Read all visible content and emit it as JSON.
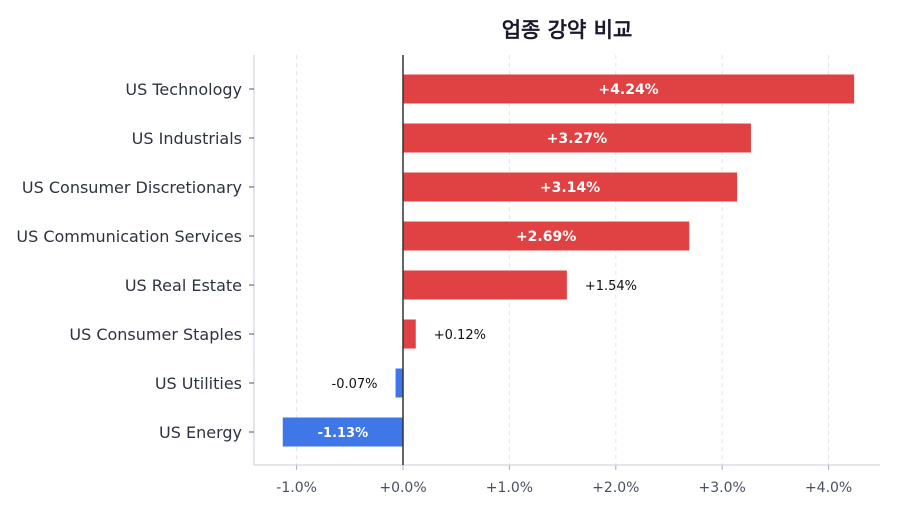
{
  "chart_data": {
    "type": "bar",
    "orientation": "horizontal",
    "title": "업종 강약 비교",
    "categories": [
      "US Technology",
      "US Industrials",
      "US Consumer Discretionary",
      "US Communication Services",
      "US Real Estate",
      "US Consumer Staples",
      "US Utilities",
      "US Energy"
    ],
    "values": [
      4.24,
      3.27,
      3.14,
      2.69,
      1.54,
      0.12,
      -0.07,
      -1.13
    ],
    "data_labels": [
      "+4.24%",
      "+3.27%",
      "+3.14%",
      "+2.69%",
      "+1.54%",
      "+0.12%",
      "-0.07%",
      "-1.13%"
    ],
    "xlim": [
      -1.4,
      4.5
    ],
    "xticks": [
      -1,
      0,
      1,
      2,
      3,
      4
    ],
    "xtick_labels": [
      "-1.0%",
      "+0.0%",
      "+1.0%",
      "+2.0%",
      "+3.0%",
      "+4.0%"
    ],
    "xlabel": "",
    "ylabel": "",
    "grid": "vertical dashed",
    "colors": {
      "positive": "#e04142",
      "negative": "#3f76e8",
      "zero_line": "#333333"
    }
  }
}
